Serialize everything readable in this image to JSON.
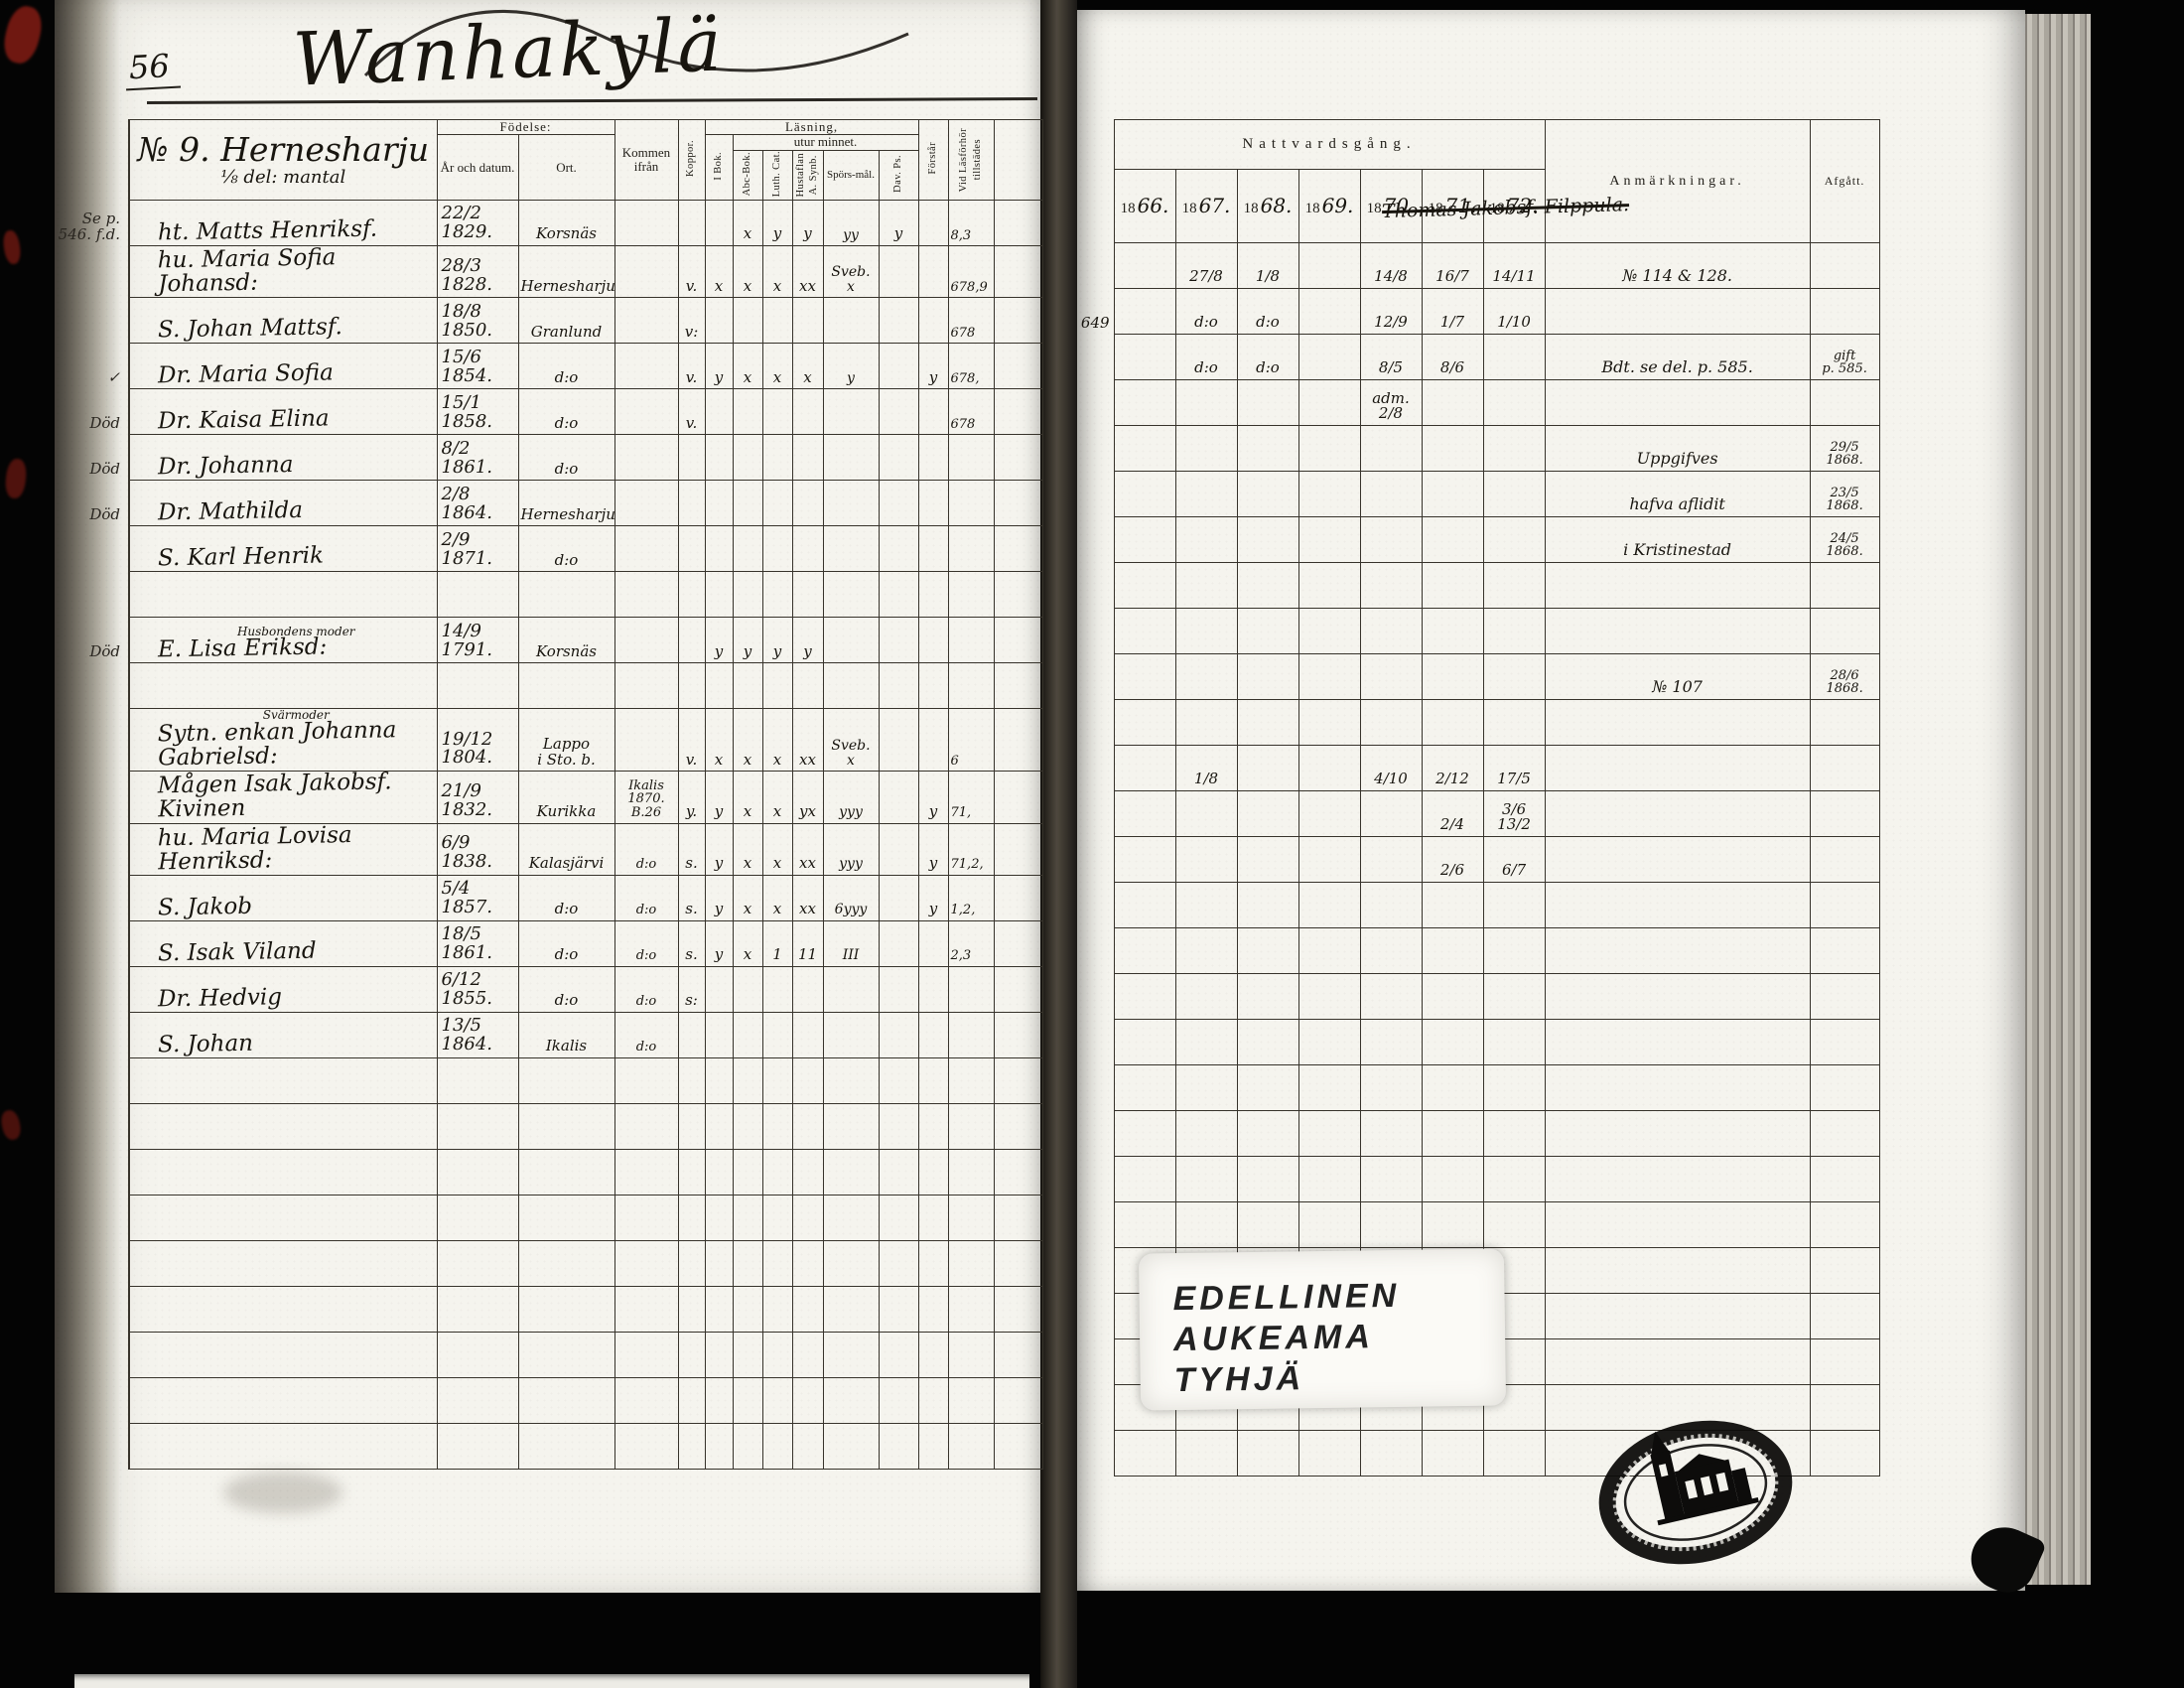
{
  "page": {
    "number": "56",
    "title": "Wanhakylä"
  },
  "left_table": {
    "household": {
      "line1": "№ 9. Hernesharju",
      "line2": "⅛ del: mantal"
    },
    "headers": {
      "fodelse": "Födelse:",
      "ar": "År och datum.",
      "ort": "Ort.",
      "kommen": "Kommen ifrån",
      "koppor": "Koppor.",
      "lasning": "Läsning,",
      "utur": "utur minnet.",
      "ibok": "I Bok.",
      "abc": "Abc-Bok.",
      "luth": "Luth. Cat.",
      "hust1": "Hustaflan",
      "hust2": "A. Synb.",
      "spors": "Spörs-mål.",
      "dav": "Dav. Ps.",
      "forstar": "Förstår",
      "vidlas1": "Vid Läsförhör",
      "vidlas2": "tillstädes"
    }
  },
  "right_table": {
    "headers": {
      "nattvard": "Nattvardsgång.",
      "anm": "Anmärkningar.",
      "afg": "Afgått.",
      "year_prefix": "18"
    },
    "years": [
      "66.",
      "67.",
      "68.",
      "69.",
      "70.",
      "71.",
      "72."
    ],
    "struck_note": "Thomas Jakobsf. Filppula."
  },
  "labels": {
    "edellinen": [
      "EDELLINEN",
      "AUKEAMA",
      "TYHJÄ"
    ]
  },
  "rows": [
    {
      "margin": "Se p. 546. f.d.",
      "name": "ht. Matts Henriksf.",
      "birth": "22/2 1829.",
      "ort": "Korsnäs",
      "abc": "x",
      "luth": "y",
      "hust": "y",
      "spors": "yy",
      "dav": "y",
      "vidlas": "8,3",
      "y67": "27/8",
      "y68": "1/8",
      "y70": "14/8",
      "y71": "16/7",
      "y72": "14/11",
      "anm": "№ 114 & 128."
    },
    {
      "name": "hu. Maria Sofia Johansd:",
      "birth": "28/3 1828.",
      "ort": "Hernesharju",
      "koppor": "v.",
      "ibok": "x",
      "abc": "x",
      "luth": "x",
      "hust": "xx",
      "spors": "Sveb.\nx",
      "vidlas": "678,9",
      "rmargin": "649",
      "y67": "d:o",
      "y68": "d:o",
      "y70": "12/9",
      "y71": "1/7",
      "y72": "1/10"
    },
    {
      "name": "S. Johan Mattsf.",
      "birth": "18/8 1850.",
      "ort": "Granlund",
      "koppor": "v:",
      "vidlas": "678",
      "y67": "d:o",
      "y68": "d:o",
      "y70": "8/5",
      "y71": "8/6",
      "anm": "Bdt. se del. p. 585.",
      "afg": "gift\np. 585."
    },
    {
      "margin": "✓",
      "name": "Dr. Maria Sofia",
      "birth": "15/6 1854.",
      "ort": "d:o",
      "koppor": "v.",
      "ibok": "y",
      "abc": "x",
      "luth": "x",
      "hust": "x",
      "spors": "y",
      "forstar": "y",
      "vidlas": "678,",
      "y70": "adm. 2/8"
    },
    {
      "margin": "Död",
      "name": "Dr. Kaisa Elina",
      "birth": "15/1 1858.",
      "ort": "d:o",
      "koppor": "v.",
      "vidlas": "678",
      "anm": "Uppgifves",
      "afg": "29/5 1868."
    },
    {
      "margin": "Död",
      "name": "Dr. Johanna",
      "birth": "8/2 1861.",
      "ort": "d:o",
      "anm": "hafva aflidit",
      "afg": "23/5 1868."
    },
    {
      "margin": "Död",
      "name": "Dr. Mathilda",
      "birth": "2/8 1864.",
      "ort": "Hernesharju",
      "anm": "i Kristinestad",
      "afg": "24/5 1868."
    },
    {
      "name": "S. Karl Henrik",
      "birth": "2/9 1871.",
      "ort": "d:o"
    },
    {},
    {
      "margin": "Död",
      "label": "Husbondens moder",
      "name": "E. Lisa Eriksd:",
      "birth": "14/9 1791.",
      "ort": "Korsnäs",
      "ibok": "y",
      "abc": "y",
      "luth": "y",
      "hust": "y",
      "anm": "№ 107",
      "afg": "28/6 1868."
    },
    {},
    {
      "label": "Svärmoder",
      "name": "Sytn. enkan Johanna Gabrielsd:",
      "birth": "19/12 1804.",
      "ort": "Lappo\ni Sto. b.",
      "koppor": "v.",
      "ibok": "x",
      "abc": "x",
      "luth": "x",
      "hust": "xx",
      "spors": "Sveb.\nx",
      "vidlas": "6",
      "y67": "1/8",
      "y70": "4/10",
      "y71": "2/12",
      "y72": "17/5"
    },
    {
      "name": "Mågen Isak Jakobsf. Kivinen",
      "birth": "21/9 1832.",
      "ort": "Kurikka",
      "kommen": "Ikalis\n1870. B.26",
      "koppor": "y.",
      "ibok": "y",
      "abc": "x",
      "luth": "x",
      "hust": "yx",
      "spors": "yyy",
      "forstar": "y",
      "vidlas": "71,",
      "y71": "2/4",
      "y72": "3/6 13/2"
    },
    {
      "name": "hu. Maria Lovisa Henriksd:",
      "birth": "6/9 1838.",
      "ort": "Kalasjärvi",
      "kommen": "d:o",
      "koppor": "s.",
      "ibok": "y",
      "abc": "x",
      "luth": "x",
      "hust": "xx",
      "spors": "yyy",
      "forstar": "y",
      "vidlas": "71,2,",
      "y71": "2/6",
      "y72": "6/7"
    },
    {
      "name": "S. Jakob",
      "birth": "5/4 1857.",
      "ort": "d:o",
      "kommen": "d:o",
      "koppor": "s.",
      "ibok": "y",
      "abc": "x",
      "luth": "x",
      "hust": "xx",
      "spors": "6yyy",
      "forstar": "y",
      "vidlas": "1,2,"
    },
    {
      "name": "S. Isak Viland",
      "birth": "18/5 1861.",
      "ort": "d:o",
      "kommen": "d:o",
      "koppor": "s.",
      "ibok": "y",
      "abc": "x",
      "luth": "1",
      "hust": "11",
      "spors": "III",
      "vidlas": "2,3"
    },
    {
      "name": "Dr. Hedvig",
      "birth": "6/12 1855.",
      "ort": "d:o",
      "kommen": "d:o",
      "koppor": "s:"
    },
    {
      "name": "S. Johan",
      "birth": "13/5 1864.",
      "ort": "Ikalis",
      "kommen": "d:o"
    },
    {},
    {},
    {},
    {},
    {},
    {},
    {},
    {},
    {}
  ]
}
